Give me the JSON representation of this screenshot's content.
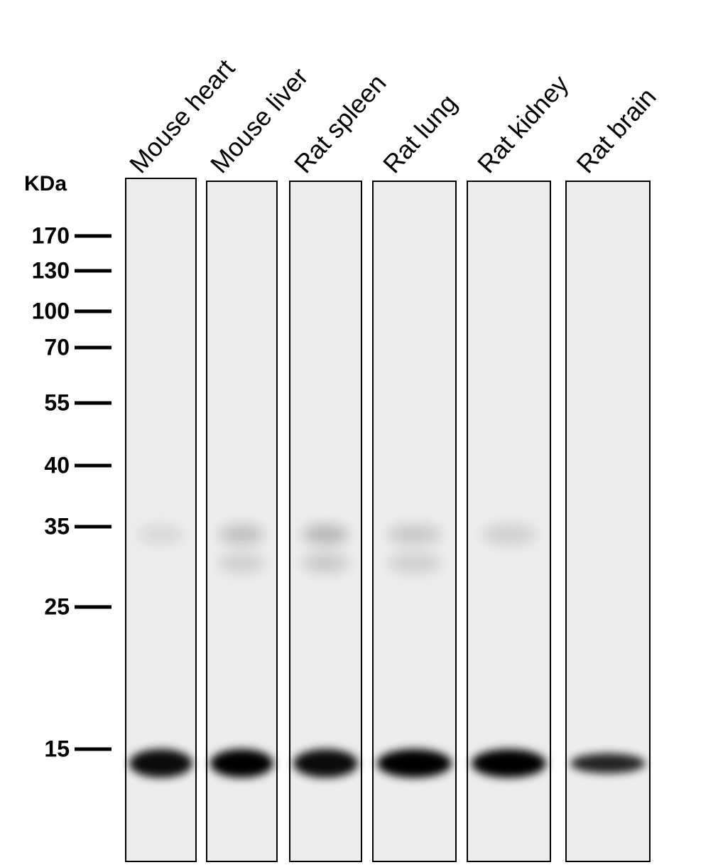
{
  "unit_label": "KDa",
  "markers": [
    "170",
    "130",
    "100",
    "70",
    "55",
    "40",
    "35",
    "25",
    "15"
  ],
  "lanes": [
    "Mouse heart",
    "Mouse liver",
    "Rat spleen",
    "Rat lung",
    "Rat kidney",
    "Rat brain"
  ]
}
